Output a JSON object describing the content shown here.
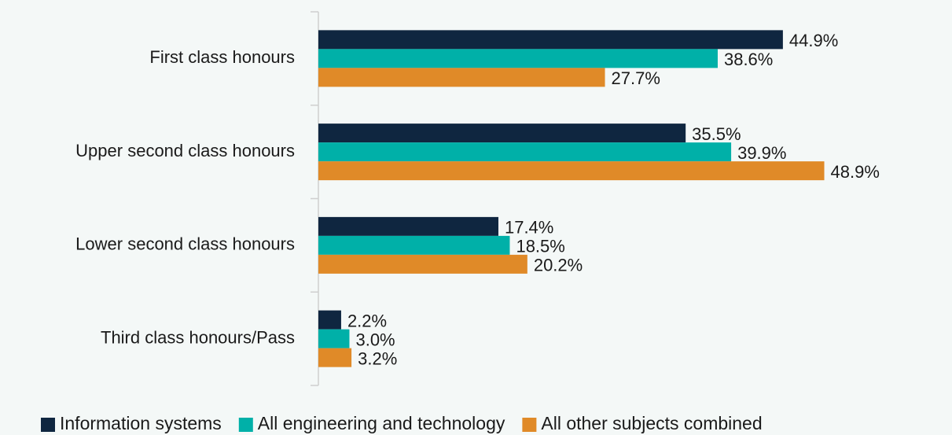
{
  "chart_data": {
    "type": "bar",
    "orientation": "horizontal",
    "categories": [
      "First class honours",
      "Upper second class honours",
      "Lower second class honours",
      "Third class honours/Pass"
    ],
    "series": [
      {
        "name": "Information systems",
        "color": "#0f2640",
        "values": [
          44.9,
          35.5,
          17.4,
          2.2
        ],
        "value_labels": [
          "44.9%",
          "35.5%",
          "17.4%",
          "2.2%"
        ]
      },
      {
        "name": "All engineering and technology",
        "color": "#00b0a8",
        "values": [
          38.6,
          39.9,
          18.5,
          3.0
        ],
        "value_labels": [
          "38.6%",
          "39.9%",
          "18.5%",
          "3.0%"
        ]
      },
      {
        "name": "All other subjects combined",
        "color": "#e08a28",
        "values": [
          27.7,
          48.9,
          20.2,
          3.2
        ],
        "value_labels": [
          "27.7%",
          "48.9%",
          "20.2%",
          "3.2%"
        ]
      }
    ],
    "legend": "bottom"
  }
}
